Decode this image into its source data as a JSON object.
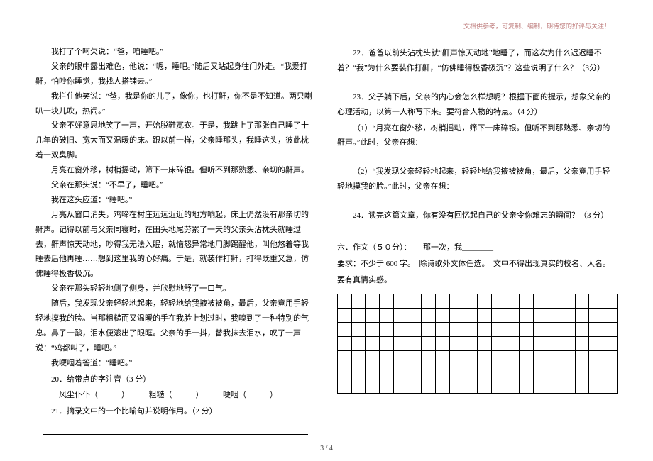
{
  "header": {
    "note": "文档供参考，可复制、编制，期待您的好评与关注！"
  },
  "left": {
    "p1": "我打了个呵欠说：“爸，咱睡吧。”",
    "p2": "父亲的眼中露出难色，他说：“嗯，睡吧。”随后又站起身往门外走。“我爱打鼾，怕吵你睡觉，我找人搭铺去。”",
    "p3": "我拦住他笑说：“爸，我是你的儿子，像你，也打鼾，你不是不知道。两只喇叭一块儿吹，热闹。”",
    "p4": "父亲不好意思地笑了一声，开始脱鞋宽衣。于是，我跳上了那张自己睡了十几年的破旧、宽大而又温暖的床。跟以前一样，父亲睡那头，我睡这头，彼此枕着一双臭脚。",
    "p5": "月亮在窗外移，树梢摇动，筛下一床碎银。但听不到那熟悉、亲切的鼾声。",
    "p6": "父亲在那头说：“不早了，睡吧。”",
    "p7": "我在这头应道：“睡吧。”",
    "p8": "月亮从窗口消失，鸡啼在村庄远远近近的地方响起，床上仍然没有那亲切的鼾声。记得以前与父亲同寝时，在田头地尾劳累了一天的父亲头沾枕头就睡过去，鼾声惊天动地，吵得我无法入眠，就恼怒异常地用脚踢醒他，叫他悠着等我睡去后他再睡……想到这里我的心好痛。于是，就装作打鼾，打得既重又急，仿佛睡得极香极沉。",
    "p9": "父亲在那头轻轻地侧了侧身，并欣慰地舒了一口气。",
    "p10": "随后，我发现父亲轻轻地起来，轻轻地给我掖被被角，最后，父亲竟用手轻轻地摸我的脸。当那粗糙而又温暖的手在我脸上划过时，我嗅到了一种特别的气息。鼻子一酸，泪水便滚出了眼眶。父亲的手一抖，替我抹去泪水，叹了一声说：“鸡都叫了，睡吧。”",
    "p11": "我哽咽着答道：“睡吧。”",
    "q20": "20．给带点的字注音（3 分）",
    "q20_line": "风尘仆仆（　　　）　　　粗糙（　　　）　　　哽咽（　　　）",
    "q21": "21．摘录文中的一个比喻句并说明作用。（2 分）"
  },
  "right": {
    "q22": "22．爸爸以前头沾枕头就“鼾声惊天动地”地睡了，而这次为什么迟迟睡不着？“我”为什么要装作打鼾，“仿佛睡得极香极沉”？这些说明了什么？（3分）",
    "q23": "23．父子躺下后，父亲的内心会怎么样想呢？根据下面的提示，想象父亲的心理活动，以第一人称写下来。要符合人物的特点。（4 分）",
    "q23_1": "（1）“月亮在窗外移，树梢摇动，筛下一床碎银。但听不到那熟悉、亲切的鼾声。”此时，父亲在想：",
    "q23_2": "（2）“我发现父亲轻轻地起来，轻轻地给我掖被被角，最后，父亲竟用手轻轻地摸我的脸。”此时，父亲在想：",
    "q24": "24．读完这篇文章，你有没有回忆起自己的父亲令你难忘的瞬间？（3 分）",
    "essay_title": "六．作文（５０分）：　　那一次，我________",
    "essay_req1": "要求：不少于 600 字。　除诗歌外文体任选。　文中不得出现真实的校名、人名。",
    "essay_req2": "要有真情实感。"
  },
  "page": {
    "num": "3 / 4"
  },
  "grid": {
    "rows": 7,
    "cols": 20
  }
}
